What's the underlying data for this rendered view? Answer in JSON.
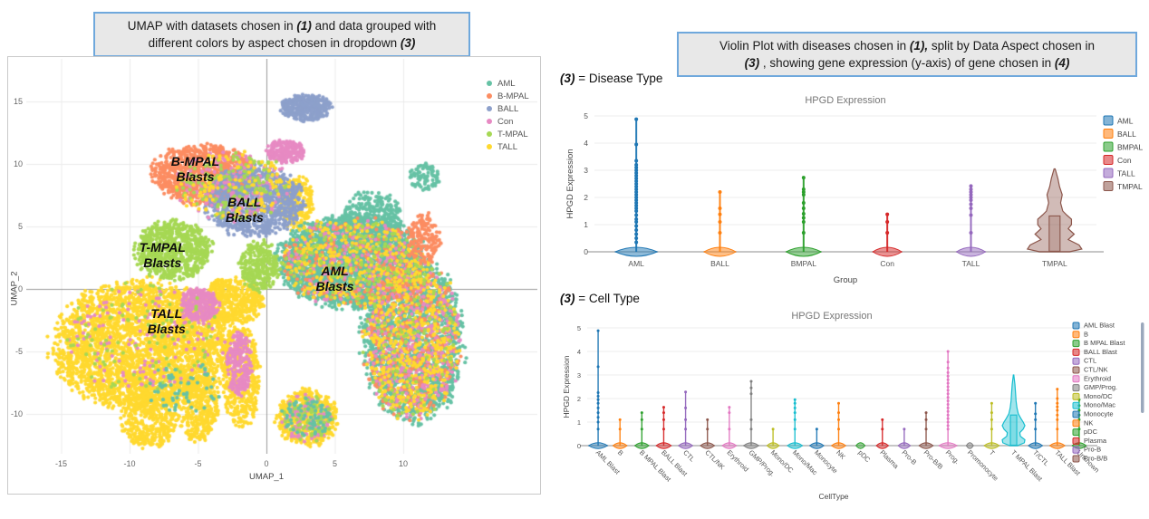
{
  "left_panel": {
    "title_lines": [
      [
        {
          "t": "UMAP with datasets chosen in "
        },
        {
          "t": "(1)",
          "i": true
        },
        {
          "t": " and data grouped with"
        }
      ],
      [
        {
          "t": "different colors by aspect chosen in dropdown "
        },
        {
          "t": "(3)",
          "i": true
        }
      ]
    ]
  },
  "right_panel": {
    "title_lines": [
      [
        {
          "t": "Violin Plot with diseases chosen in "
        },
        {
          "t": "(1),",
          "i": true
        },
        {
          "t": " split by Data Aspect chosen in"
        }
      ],
      [
        {
          "t": "(3)",
          "i": true
        },
        {
          "t": " , showing gene expression (y-axis) of gene chosen in "
        },
        {
          "t": "(4)",
          "i": true
        }
      ]
    ],
    "section1_label": [
      {
        "t": "(3)",
        "i": true
      },
      {
        "t": " = Disease Type"
      }
    ],
    "section2_label": [
      {
        "t": "(3)",
        "i": true
      },
      {
        "t": " = Cell Type"
      }
    ]
  },
  "chart_data": [
    {
      "id": "umap",
      "type": "scatter",
      "title": "",
      "xlabel": "UMAP_1",
      "ylabel": "UMAP_2",
      "xlim": [
        -17.5,
        20
      ],
      "ylim": [
        -13.2,
        18.4
      ],
      "x_ticks": [
        -15,
        -10,
        -5,
        0,
        5,
        10
      ],
      "y_ticks": [
        15,
        10,
        5,
        0,
        -5,
        -10
      ],
      "grid": true,
      "legend_position": "top-right-inside",
      "legend": [
        {
          "label": "AML",
          "color": "#66c2a5"
        },
        {
          "label": "B-MPAL",
          "color": "#fc8d62"
        },
        {
          "label": "BALL",
          "color": "#8da0cb"
        },
        {
          "label": "Con",
          "color": "#e78ac3"
        },
        {
          "label": "T-MPAL",
          "color": "#a6d854"
        },
        {
          "label": "TALL",
          "color": "#ffd92f"
        }
      ],
      "annotations": [
        {
          "text": "B-MPAL Blasts",
          "lines": [
            "B-MPAL",
            "Blasts"
          ],
          "x": -5.2,
          "y": 9.6
        },
        {
          "text": "BALL Blasts",
          "lines": [
            "BALL",
            "Blasts"
          ],
          "x": -1.6,
          "y": 6.3
        },
        {
          "text": "T-MPAL Blasts",
          "lines": [
            "T-MPAL",
            "Blasts"
          ],
          "x": -7.6,
          "y": 2.7
        },
        {
          "text": "AML Blasts",
          "lines": [
            "AML",
            "Blasts"
          ],
          "x": 5.0,
          "y": 0.8
        },
        {
          "text": "TALL Blasts",
          "lines": [
            "TALL",
            "Blasts"
          ],
          "x": -7.3,
          "y": -2.6
        }
      ],
      "clusters": [
        {
          "g": "TALL",
          "x": -9.0,
          "y": -4.5,
          "rx": 6.4,
          "ry": 5.0,
          "n": 3200
        },
        {
          "g": "TALL",
          "x": -2.5,
          "y": -1.0,
          "rx": 2.2,
          "ry": 1.8,
          "n": 500
        },
        {
          "g": "TALL",
          "x": -8.6,
          "y": -10.5,
          "rx": 2.0,
          "ry": 2.2,
          "n": 400
        },
        {
          "g": "TALL",
          "x": -5.0,
          "y": -9.5,
          "rx": 1.5,
          "ry": 2.6,
          "n": 340
        },
        {
          "g": "TALL",
          "x": -1.8,
          "y": -7.0,
          "rx": 1.3,
          "ry": 4.0,
          "n": 420
        },
        {
          "g": "TALL",
          "x": 2.2,
          "y": 6.9,
          "rx": 1.2,
          "ry": 2.1,
          "n": 260
        },
        {
          "g": "TALL",
          "x": 3.0,
          "y": -10.3,
          "rx": 2.2,
          "ry": 2.2,
          "n": 520
        },
        {
          "g": "AML",
          "x": 6.2,
          "y": 2.2,
          "rx": 5.2,
          "ry": 3.6,
          "n": 2800
        },
        {
          "g": "AML",
          "x": 10.7,
          "y": -4.0,
          "rx": 3.6,
          "ry": 6.5,
          "n": 2000
        },
        {
          "g": "AML",
          "x": 7.8,
          "y": 5.5,
          "rx": 2.2,
          "ry": 2.2,
          "n": 350
        },
        {
          "g": "AML",
          "x": 11.5,
          "y": 9.0,
          "rx": 1.1,
          "ry": 1.1,
          "n": 90
        },
        {
          "g": "B-MPAL",
          "x": -4.6,
          "y": 9.2,
          "rx": 3.7,
          "ry": 2.3,
          "n": 1000
        },
        {
          "g": "BALL",
          "x": -0.9,
          "y": 7.0,
          "rx": 3.5,
          "ry": 2.7,
          "n": 1000
        },
        {
          "g": "BALL",
          "x": 2.9,
          "y": 14.5,
          "rx": 1.75,
          "ry": 1.05,
          "n": 380
        },
        {
          "g": "T-MPAL",
          "x": -6.8,
          "y": 3.1,
          "rx": 2.7,
          "ry": 2.3,
          "n": 750
        },
        {
          "g": "T-MPAL",
          "x": -0.5,
          "y": 1.8,
          "rx": 1.4,
          "ry": 2.0,
          "n": 300
        },
        {
          "g": "Con",
          "x": 1.4,
          "y": 11.0,
          "rx": 1.4,
          "ry": 0.9,
          "n": 240
        },
        {
          "g": "Con",
          "x": -4.9,
          "y": -1.3,
          "rx": 1.4,
          "ry": 1.3,
          "n": 280
        },
        {
          "g": "Con",
          "x": -2.0,
          "y": -6.0,
          "rx": 0.9,
          "ry": 2.5,
          "n": 220
        },
        {
          "g": "B-MPAL",
          "x": 10.7,
          "y": -4.0,
          "rx": 3.4,
          "ry": 6.2,
          "n": 480
        },
        {
          "g": "Con",
          "x": 10.7,
          "y": -4.0,
          "rx": 3.4,
          "ry": 6.2,
          "n": 420
        },
        {
          "g": "TALL",
          "x": 10.7,
          "y": -4.0,
          "rx": 3.4,
          "ry": 6.2,
          "n": 480
        },
        {
          "g": "T-MPAL",
          "x": 10.7,
          "y": -4.0,
          "rx": 3.4,
          "ry": 6.2,
          "n": 110
        },
        {
          "g": "B-MPAL",
          "x": 6.2,
          "y": 2.2,
          "rx": 5.0,
          "ry": 3.4,
          "n": 260
        },
        {
          "g": "Con",
          "x": 6.2,
          "y": 2.2,
          "rx": 5.0,
          "ry": 3.4,
          "n": 200
        },
        {
          "g": "TALL",
          "x": 6.2,
          "y": 2.2,
          "rx": 5.0,
          "ry": 3.4,
          "n": 320
        },
        {
          "g": "T-MPAL",
          "x": 6.2,
          "y": 2.2,
          "rx": 5.0,
          "ry": 3.4,
          "n": 150
        },
        {
          "g": "B-MPAL",
          "x": 11.5,
          "y": 4.0,
          "rx": 1.2,
          "ry": 2.0,
          "n": 160
        },
        {
          "g": "Con",
          "x": -2.5,
          "y": 8.2,
          "rx": 4.0,
          "ry": 2.6,
          "n": 170
        },
        {
          "g": "T-MPAL",
          "x": -2.5,
          "y": 8.2,
          "rx": 4.0,
          "ry": 2.6,
          "n": 150
        },
        {
          "g": "TALL",
          "x": -2.5,
          "y": 8.2,
          "rx": 4.0,
          "ry": 2.6,
          "n": 110
        },
        {
          "g": "Con",
          "x": 3.0,
          "y": -10.3,
          "rx": 1.8,
          "ry": 1.8,
          "n": 110
        },
        {
          "g": "T-MPAL",
          "x": 3.0,
          "y": -10.3,
          "rx": 1.8,
          "ry": 1.8,
          "n": 80
        },
        {
          "g": "AML",
          "x": 3.0,
          "y": -10.3,
          "rx": 1.8,
          "ry": 1.8,
          "n": 70
        },
        {
          "g": "Con",
          "x": -9.0,
          "y": -4.0,
          "rx": 5.5,
          "ry": 4.2,
          "n": 130
        },
        {
          "g": "T-MPAL",
          "x": -9.0,
          "y": -4.0,
          "rx": 5.5,
          "ry": 4.2,
          "n": 100
        },
        {
          "g": "AML",
          "x": -6.0,
          "y": -8.0,
          "rx": 3.0,
          "ry": 2.0,
          "n": 60
        }
      ]
    },
    {
      "id": "violin-disease",
      "type": "violin",
      "title": "HPGD Expression",
      "xlabel": "Group",
      "ylabel": "HPGD Expression",
      "ylim": [
        0,
        5
      ],
      "y_ticks": [
        0,
        1,
        2,
        3,
        4,
        5
      ],
      "grid": true,
      "legend_position": "right",
      "legend_visible": 6,
      "categories": [
        "AML",
        "BALL",
        "BMPAL",
        "Con",
        "TALL",
        "TMPAL"
      ],
      "series": [
        {
          "label": "AML",
          "color": "#1f77b4",
          "stem_max": 4.88,
          "base_w": 0.72,
          "dots": [
            0.35,
            0.5,
            0.65,
            0.8,
            0.95,
            1.1,
            1.2,
            1.35,
            1.5,
            1.6,
            1.7,
            1.8,
            1.9,
            2.0,
            2.1,
            2.2,
            2.3,
            2.4,
            2.5,
            2.6,
            2.7,
            2.8,
            2.9,
            3.0,
            3.1,
            3.2,
            3.35,
            3.95,
            4.88
          ]
        },
        {
          "label": "BALL",
          "color": "#ff7f0e",
          "stem_max": 2.2,
          "base_w": 0.55,
          "dots": [
            0.7,
            1.1,
            1.38,
            1.6,
            2.2
          ]
        },
        {
          "label": "BMPAL",
          "color": "#2ca02c",
          "stem_max": 2.73,
          "base_w": 0.6,
          "dots": [
            0.7,
            1.1,
            1.25,
            1.4,
            1.6,
            1.8,
            2.1,
            2.2,
            2.3,
            2.73
          ]
        },
        {
          "label": "Con",
          "color": "#d62728",
          "stem_max": 1.38,
          "base_w": 0.5,
          "dots": [
            0.7,
            1.1,
            1.38
          ]
        },
        {
          "label": "TALL",
          "color": "#9467bd",
          "stem_max": 2.42,
          "base_w": 0.5,
          "dots": [
            0.7,
            1.35,
            1.6,
            1.75,
            1.9,
            2.0,
            2.1,
            2.2,
            2.3,
            2.42
          ]
        },
        {
          "label": "TMPAL",
          "color": "#8c564b",
          "stem_max": 3.05,
          "base_w": 0,
          "dots": [],
          "profile": [
            [
              0,
              0.55
            ],
            [
              0.1,
              1.0
            ],
            [
              0.25,
              0.9
            ],
            [
              0.45,
              0.5
            ],
            [
              0.65,
              0.72
            ],
            [
              0.85,
              0.5
            ],
            [
              1.0,
              0.62
            ],
            [
              1.2,
              0.62
            ],
            [
              1.35,
              0.45
            ],
            [
              1.5,
              0.3
            ],
            [
              1.8,
              0.22
            ],
            [
              2.1,
              0.28
            ],
            [
              2.4,
              0.18
            ],
            [
              2.7,
              0.12
            ],
            [
              3.05,
              0.02
            ]
          ],
          "box": [
            0.02,
            1.32
          ]
        }
      ]
    },
    {
      "id": "violin-celltype",
      "type": "violin",
      "title": "HPGD Expression",
      "xlabel": "CellType",
      "ylabel": "HPGD Expression",
      "ylim": [
        0,
        5
      ],
      "y_ticks": [
        0,
        1,
        2,
        3,
        4,
        5
      ],
      "grid": true,
      "legend_position": "right",
      "legend_visible": 16,
      "legend_scrollbar": true,
      "categories": [
        "AML Blast",
        "B",
        "B MPAL Blast",
        "BALL Blast",
        "CTL",
        "CTL/NK",
        "Erythroid",
        "GMP/Prog.",
        "Mono/DC",
        "Mono/Mac",
        "Monocyte",
        "NK",
        "pDC",
        "Plasma",
        "Pro-B",
        "Pro-B/B",
        "Prog.",
        "Promonocyte",
        "T",
        "T MPAL Blast",
        "T/CTL",
        "TALL Blast",
        "Unknown"
      ],
      "series": [
        {
          "label": "AML Blast",
          "color": "#1f77b4",
          "stem_max": 4.88,
          "base_w": 0.95,
          "dots": [
            0.7,
            1.0,
            1.2,
            1.4,
            1.6,
            1.8,
            1.95,
            2.1,
            2.25,
            3.35,
            4.88
          ]
        },
        {
          "label": "B",
          "color": "#ff7f0e",
          "stem_max": 1.1,
          "base_w": 0.7,
          "dots": [
            0.7,
            1.1
          ]
        },
        {
          "label": "B MPAL Blast",
          "color": "#2ca02c",
          "stem_max": 1.4,
          "base_w": 0.7,
          "dots": [
            0.7,
            1.1,
            1.4
          ]
        },
        {
          "label": "BALL Blast",
          "color": "#d62728",
          "stem_max": 1.63,
          "base_w": 0.75,
          "dots": [
            0.7,
            1.1,
            1.4,
            1.63
          ]
        },
        {
          "label": "CTL",
          "color": "#9467bd",
          "stem_max": 2.28,
          "base_w": 0.7,
          "dots": [
            0.7,
            1.1,
            1.6,
            2.28
          ]
        },
        {
          "label": "CTL/NK",
          "color": "#8c564b",
          "stem_max": 1.1,
          "base_w": 0.7,
          "dots": [
            0.7,
            1.1
          ]
        },
        {
          "label": "Erythroid",
          "color": "#e377c2",
          "stem_max": 1.63,
          "base_w": 0.7,
          "dots": [
            0.7,
            1.4,
            1.63
          ]
        },
        {
          "label": "GMP/Prog.",
          "color": "#7f7f7f",
          "stem_max": 2.73,
          "base_w": 0.75,
          "dots": [
            0.7,
            1.1,
            2.2,
            2.45,
            2.73
          ]
        },
        {
          "label": "Mono/DC",
          "color": "#bcbd22",
          "stem_max": 0.7,
          "base_w": 0.6,
          "dots": [
            0.7
          ]
        },
        {
          "label": "Mono/Mac",
          "color": "#17becf",
          "stem_max": 1.95,
          "base_w": 0.75,
          "dots": [
            0.7,
            1.1,
            1.4,
            1.6,
            1.8,
            1.95
          ]
        },
        {
          "label": "Monocyte",
          "color": "#1f77b4",
          "stem_max": 0.7,
          "base_w": 0.7,
          "dots": [
            0.7
          ]
        },
        {
          "label": "NK",
          "color": "#ff7f0e",
          "stem_max": 1.8,
          "base_w": 0.7,
          "dots": [
            0.7,
            1.1,
            1.4,
            1.8
          ]
        },
        {
          "label": "pDC",
          "color": "#2ca02c",
          "stem_max": 0.04,
          "base_w": 0.45,
          "dots": []
        },
        {
          "label": "Plasma",
          "color": "#d62728",
          "stem_max": 1.1,
          "base_w": 0.6,
          "dots": [
            0.7,
            1.1
          ]
        },
        {
          "label": "Pro-B",
          "color": "#9467bd",
          "stem_max": 0.7,
          "base_w": 0.6,
          "dots": [
            0.7
          ]
        },
        {
          "label": "Pro-B/B",
          "color": "#8c564b",
          "stem_max": 1.4,
          "base_w": 0.7,
          "dots": [
            0.7,
            1.1,
            1.4
          ]
        },
        {
          "label": "Prog.",
          "color": "#e377c2",
          "stem_max": 4.0,
          "base_w": 0.9,
          "dots": [
            0.7,
            0.85,
            1.0,
            1.15,
            1.3,
            1.45,
            1.6,
            1.75,
            1.9,
            2.05,
            2.2,
            2.35,
            2.5,
            2.65,
            2.8,
            2.95,
            3.1,
            3.3,
            3.55,
            4.0
          ]
        },
        {
          "label": "Promonocyte",
          "color": "#7f7f7f",
          "stem_max": 0.04,
          "base_w": 0.35,
          "dots": []
        },
        {
          "label": "T",
          "color": "#bcbd22",
          "stem_max": 1.8,
          "base_w": 0.75,
          "dots": [
            0.7,
            1.1,
            1.4,
            1.8
          ]
        },
        {
          "label": "T MPAL Blast",
          "color": "#17becf",
          "stem_max": 3.0,
          "base_w": 0,
          "dots": [],
          "profile": [
            [
              0,
              0.35
            ],
            [
              0.12,
              0.95
            ],
            [
              0.25,
              1.0
            ],
            [
              0.4,
              0.6
            ],
            [
              0.55,
              0.55
            ],
            [
              0.7,
              0.85
            ],
            [
              0.85,
              1.0
            ],
            [
              1.0,
              0.85
            ],
            [
              1.15,
              0.65
            ],
            [
              1.35,
              0.42
            ],
            [
              1.6,
              0.3
            ],
            [
              1.9,
              0.22
            ],
            [
              2.2,
              0.18
            ],
            [
              2.6,
              0.12
            ],
            [
              3.0,
              0.02
            ]
          ],
          "box": [
            0.02,
            1.3
          ]
        },
        {
          "label": "T/CTL",
          "color": "#1f77b4",
          "stem_max": 1.8,
          "base_w": 0.7,
          "dots": [
            0.7,
            1.1,
            1.35,
            1.8
          ]
        },
        {
          "label": "TALL Blast",
          "color": "#ff7f0e",
          "stem_max": 2.4,
          "base_w": 0.75,
          "dots": [
            0.7,
            1.1,
            1.3,
            1.5,
            1.65,
            1.8,
            2.0,
            2.4
          ]
        },
        {
          "label": "Unknown",
          "color": "#2ca02c",
          "stem_max": 1.95,
          "base_w": 0.7,
          "dots": [
            0.7,
            1.1,
            1.3,
            1.5,
            1.7,
            1.95
          ]
        }
      ]
    }
  ]
}
